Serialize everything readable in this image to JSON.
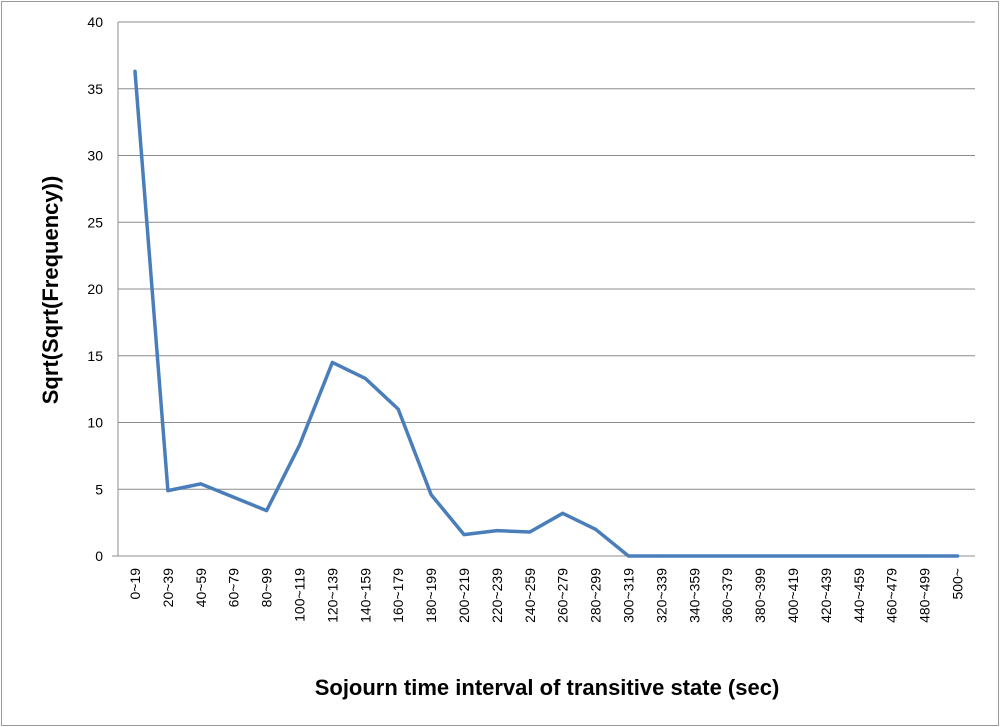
{
  "chart_data": {
    "type": "line",
    "title": "",
    "xlabel": "Sojourn time interval of transitive state (sec)",
    "ylabel": "Sqrt(Sqrt(Frequency))",
    "ylim": [
      0,
      40
    ],
    "yticks": [
      "0",
      "5",
      "10",
      "15",
      "20",
      "25",
      "30",
      "35",
      "40"
    ],
    "grid": "horizontal",
    "legend": "none",
    "line_color": "#4a7ebb",
    "categories": [
      "0~19",
      "20~39",
      "40~59",
      "60~79",
      "80~99",
      "100~119",
      "120~139",
      "140~159",
      "160~179",
      "180~199",
      "200~219",
      "220~239",
      "240~259",
      "260~279",
      "280~299",
      "300~319",
      "320~339",
      "340~359",
      "360~379",
      "380~399",
      "400~419",
      "420~439",
      "440~459",
      "460~479",
      "480~499",
      "500~"
    ],
    "values": [
      36.3,
      4.9,
      5.4,
      4.4,
      3.4,
      8.3,
      14.5,
      13.3,
      11.0,
      4.6,
      1.6,
      1.9,
      1.8,
      3.2,
      2.0,
      0,
      0,
      0,
      0,
      0,
      0,
      0,
      0,
      0,
      0,
      0
    ]
  }
}
